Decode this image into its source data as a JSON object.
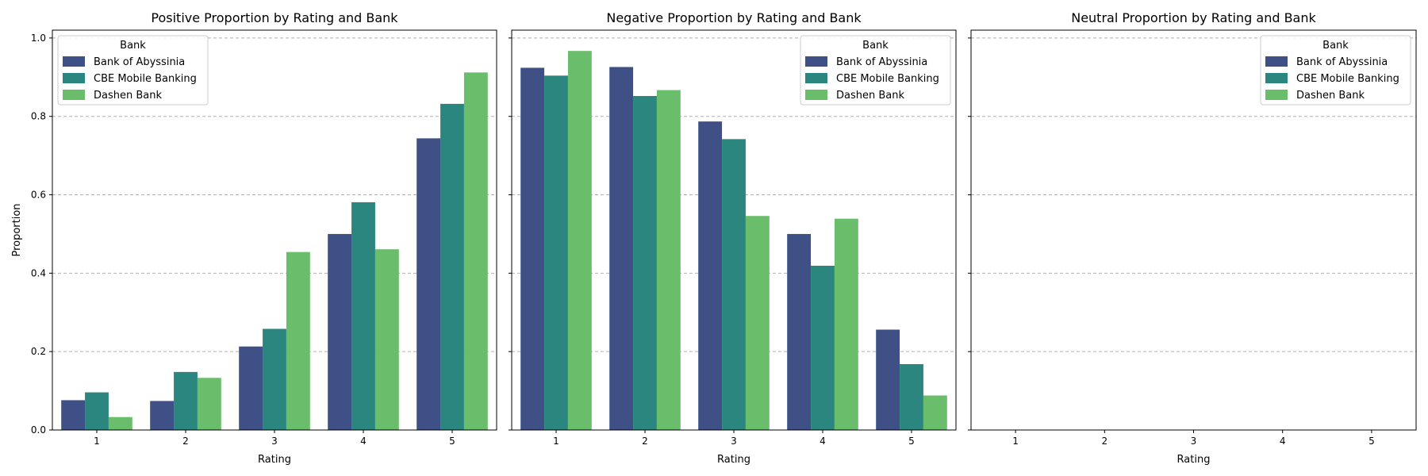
{
  "chart_data": [
    {
      "type": "bar",
      "title": "Positive Proportion by Rating and Bank",
      "xlabel": "Rating",
      "ylabel": "Proportion",
      "ylim": [
        0,
        1.02
      ],
      "yticks": [
        "0.0",
        "0.2",
        "0.4",
        "0.6",
        "0.8",
        "1.0"
      ],
      "grid": true,
      "legend_title": "Bank",
      "legend_position": "top-left",
      "categories": [
        "1",
        "2",
        "3",
        "4",
        "5"
      ],
      "series": [
        {
          "name": "Bank of Abyssinia",
          "values": [
            0.076,
            0.074,
            0.213,
            0.5,
            0.744
          ]
        },
        {
          "name": "CBE Mobile Banking",
          "values": [
            0.096,
            0.148,
            0.258,
            0.581,
            0.832
          ]
        },
        {
          "name": "Dashen Bank",
          "values": [
            0.033,
            0.133,
            0.454,
            0.461,
            0.912
          ]
        }
      ]
    },
    {
      "type": "bar",
      "title": "Negative Proportion by Rating and Bank",
      "xlabel": "Rating",
      "ylabel": "",
      "ylim": [
        0,
        1.02
      ],
      "yticks": [
        "",
        "",
        "",
        "",
        "",
        ""
      ],
      "grid": true,
      "legend_title": "Bank",
      "legend_position": "top-right",
      "categories": [
        "1",
        "2",
        "3",
        "4",
        "5"
      ],
      "series": [
        {
          "name": "Bank of Abyssinia",
          "values": [
            0.924,
            0.926,
            0.787,
            0.5,
            0.256
          ]
        },
        {
          "name": "CBE Mobile Banking",
          "values": [
            0.904,
            0.852,
            0.742,
            0.419,
            0.168
          ]
        },
        {
          "name": "Dashen Bank",
          "values": [
            0.967,
            0.867,
            0.546,
            0.539,
            0.088
          ]
        }
      ]
    },
    {
      "type": "bar",
      "title": "Neutral Proportion by Rating and Bank",
      "xlabel": "Rating",
      "ylabel": "",
      "ylim": [
        0,
        1.02
      ],
      "yticks": [
        "",
        "",
        "",
        "",
        "",
        ""
      ],
      "grid": true,
      "legend_title": "Bank",
      "legend_position": "top-right",
      "categories": [
        "1",
        "2",
        "3",
        "4",
        "5"
      ],
      "series": [
        {
          "name": "Bank of Abyssinia",
          "values": [
            0,
            0,
            0,
            0,
            0
          ]
        },
        {
          "name": "CBE Mobile Banking",
          "values": [
            0,
            0,
            0,
            0,
            0
          ]
        },
        {
          "name": "Dashen Bank",
          "values": [
            0,
            0,
            0,
            0,
            0
          ]
        }
      ]
    }
  ],
  "colors": [
    "#3e5086",
    "#2b8680",
    "#6abd6b"
  ]
}
